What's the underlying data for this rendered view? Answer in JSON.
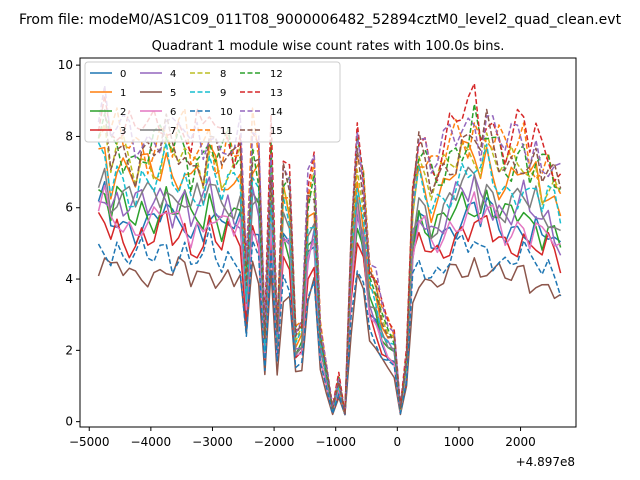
{
  "chart_data": {
    "type": "line",
    "suptitle": "From file: modeM0/AS1C09_011T08_9000006482_52894cztM0_level2_quad_clean.evt",
    "title": "Quadrant 1 module wise count rates with 100.0s bins.",
    "xlabel": "",
    "ylabel": "",
    "x_offset_label": "+4.897e8",
    "xlim": [
      -5150,
      2900
    ],
    "ylim": [
      -0.15,
      10.2
    ],
    "x_ticks": [
      -5000,
      -4000,
      -3000,
      -2000,
      -1000,
      0,
      1000,
      2000
    ],
    "x_tick_labels": [
      "−5000",
      "−4000",
      "−3000",
      "−2000",
      "−1000",
      "0",
      "1000",
      "2000"
    ],
    "y_ticks": [
      0,
      2,
      4,
      6,
      8,
      10
    ],
    "y_tick_labels": [
      "0",
      "2",
      "4",
      "6",
      "8",
      "10"
    ],
    "legend_position": "top-left",
    "legend_columns": 5,
    "x_start": -4850,
    "x_step": 100,
    "scale_shape": [
      1.08,
      1.12,
      1.0,
      1.06,
      1.02,
      1.0,
      0.98,
      1.03,
      1.0,
      1.01,
      1.04,
      1.08,
      1.0,
      1.03,
      1.05,
      0.95,
      1.0,
      0.98,
      1.08,
      1.0,
      0.96,
      1.02,
      0.97,
      1.0,
      0.55,
      1.05,
      0.98,
      0.32,
      1.0,
      0.34,
      0.9,
      0.85,
      0.33,
      0.36,
      0.82,
      0.9,
      0.34,
      0.2,
      0.05,
      0.16,
      0.03,
      0.65,
      1.0,
      0.86,
      0.56,
      0.5,
      0.4,
      0.35,
      0.32,
      0.05,
      0.24,
      0.85,
      1.0,
      0.96,
      0.9,
      0.92,
      0.95,
      1.0,
      1.03,
      1.06,
      1.05,
      1.1,
      1.02,
      1.08,
      1.02,
      1.0,
      0.97,
      0.98,
      1.0,
      1.03,
      0.95,
      0.98,
      0.92,
      0.95,
      0.9,
      0.85
    ],
    "series": [
      {
        "name": "0",
        "color": "#1f77b4",
        "dash": "",
        "scale": 5.5
      },
      {
        "name": "1",
        "color": "#ff7f0e",
        "dash": "",
        "scale": 6.9
      },
      {
        "name": "2",
        "color": "#2ca02c",
        "dash": "",
        "scale": 5.8
      },
      {
        "name": "3",
        "color": "#d62728",
        "dash": "",
        "scale": 5.1
      },
      {
        "name": "4",
        "color": "#9467bd",
        "dash": "",
        "scale": 6.0
      },
      {
        "name": "5",
        "color": "#8c564b",
        "dash": "",
        "scale": 4.1
      },
      {
        "name": "6",
        "color": "#e377c2",
        "dash": "",
        "scale": 5.5
      },
      {
        "name": "7",
        "color": "#7f7f7f",
        "dash": "",
        "scale": 6.2
      },
      {
        "name": "8",
        "color": "#bcbd22",
        "dash": "5,2.5",
        "scale": 7.2
      },
      {
        "name": "9",
        "color": "#17becf",
        "dash": "5,2.5",
        "scale": 6.6
      },
      {
        "name": "10",
        "color": "#1f77b4",
        "dash": "5,2.5",
        "scale": 4.6
      },
      {
        "name": "11",
        "color": "#ff7f0e",
        "dash": "5,2.5",
        "scale": 7.7
      },
      {
        "name": "12",
        "color": "#2ca02c",
        "dash": "5,2.5",
        "scale": 7.5
      },
      {
        "name": "13",
        "color": "#d62728",
        "dash": "5,2.5",
        "scale": 8.1
      },
      {
        "name": "14",
        "color": "#9467bd",
        "dash": "5,2.5",
        "scale": 7.9
      },
      {
        "name": "15",
        "color": "#8c564b",
        "dash": "5,2.5",
        "scale": 7.4
      }
    ]
  }
}
